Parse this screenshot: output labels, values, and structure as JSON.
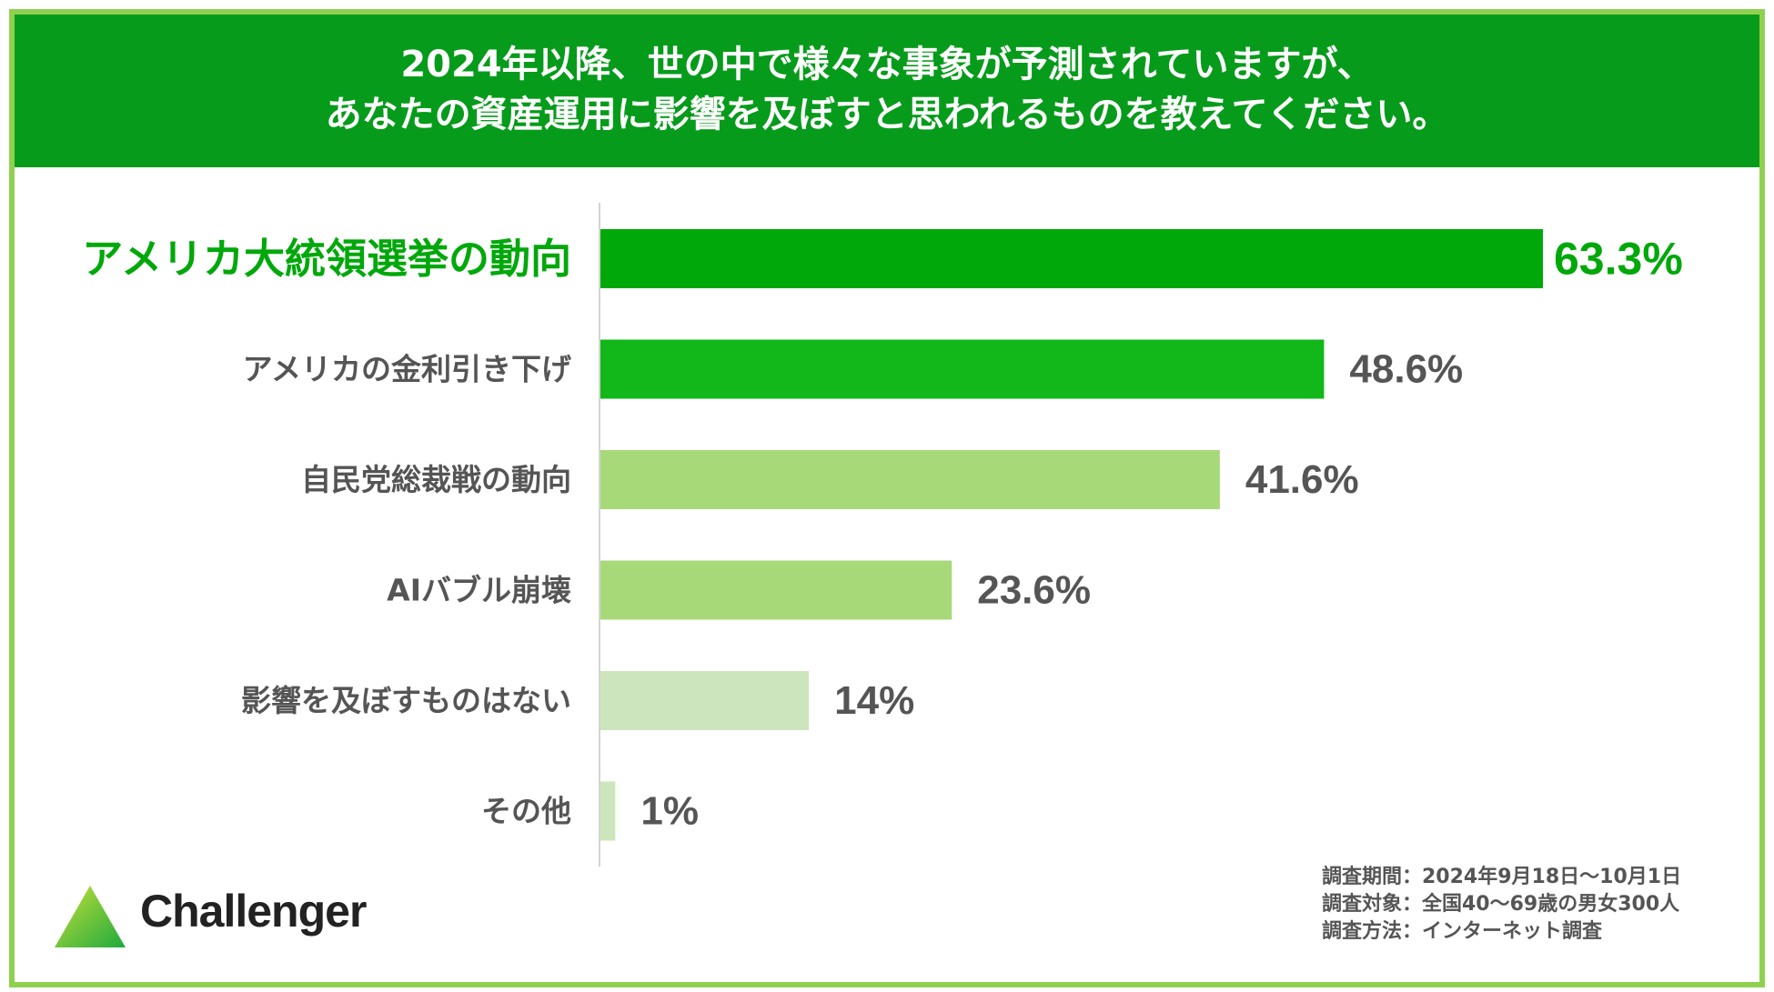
{
  "header": {
    "line1": "2024年以降、世の中で様々な事象が予測されていますが、",
    "line2": "あなたの資産運用に影響を及ぼすと思われるものを教えてください。"
  },
  "chart_data": {
    "type": "bar",
    "orientation": "horizontal",
    "categories": [
      "アメリカ大統領選挙の動向",
      "アメリカの金利引き下げ",
      "自民党総裁戦の動向",
      "AIバブル崩壊",
      "影響を及ぼすものはない",
      "その他"
    ],
    "values": [
      63.3,
      48.6,
      41.6,
      23.6,
      14,
      1
    ],
    "value_labels": [
      "63.3%",
      "48.6%",
      "41.6%",
      "23.6%",
      "14%",
      "1%"
    ],
    "bar_colors": [
      "#00a80a",
      "#12b719",
      "#a8d979",
      "#a8d979",
      "#cde5bd",
      "#cde5bd"
    ],
    "highlight_color": "#00a80a",
    "label_color": "#555555",
    "xlim": [
      0,
      63.3
    ],
    "grid": false,
    "legend": "none"
  },
  "survey": {
    "period": "調査期間：2024年9月18日～10月1日",
    "target": "調査対象：全国40～69歳の男女300人",
    "method": "調査方法：インターネット調査"
  },
  "logo": {
    "name": "Challenger",
    "gradient_colors": [
      "#c8e03a",
      "#1eaa3c"
    ]
  }
}
